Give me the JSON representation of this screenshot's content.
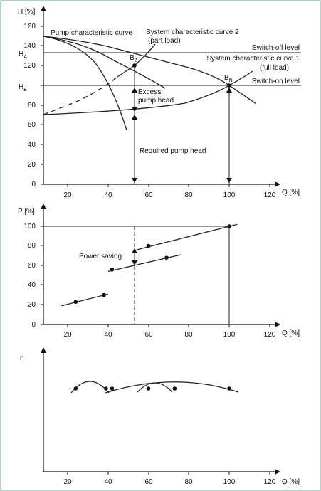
{
  "colors": {
    "frame_border": "#9cc3b3",
    "ink": "#111111",
    "background": "#ffffff"
  },
  "chart_data": [
    {
      "type": "line",
      "ylabel": "H [%]",
      "xlabel": "Q [%]",
      "xlim": [
        8,
        125
      ],
      "ylim": [
        0,
        165
      ],
      "x_ticks": [
        "20",
        "40",
        "60",
        "80",
        "100",
        "120"
      ],
      "y_ticks": [
        "0",
        "20",
        "40",
        "60",
        "80",
        "100",
        "120",
        "140",
        "160"
      ],
      "series": [
        {
          "name": "Pump characteristic curve",
          "x": [
            8,
            30,
            50,
            54,
            65,
            80,
            100,
            110
          ],
          "y": [
            150,
            144,
            130,
            120,
            112,
            105,
            100,
            82
          ],
          "style": "solid"
        },
        {
          "name": "System characteristic curve 1 (full load)",
          "x": [
            8,
            40,
            60,
            80,
            100,
            112
          ],
          "y": [
            70,
            72,
            78,
            86,
            100,
            114
          ],
          "style": "solid"
        },
        {
          "name": "System characteristic curve 2 (part load)",
          "x": [
            8,
            30,
            45,
            54,
            62
          ],
          "y": [
            70,
            84,
            102,
            120,
            142
          ],
          "style": "dashed_then_solid"
        },
        {
          "name": "",
          "x": [
            8,
            20,
            30,
            40,
            46,
            51,
            59,
            68
          ],
          "y": [
            150,
            140,
            127,
            111,
            100,
            85,
            70,
            55
          ],
          "style": "solid"
        },
        {
          "name": "",
          "x": [
            8,
            25,
            40,
            49,
            54,
            63,
            69
          ],
          "y": [
            150,
            138,
            120,
            107,
            97,
            85,
            73
          ],
          "style": "solid"
        }
      ],
      "reference_lines": [
        {
          "label": "H_A",
          "value": 133,
          "text": "Switch-off level"
        },
        {
          "label": "H_E",
          "value": 100,
          "text": "Switch-on level"
        }
      ],
      "points": [
        {
          "label": "B",
          "subscript": "2",
          "x": 54,
          "y": 120
        },
        {
          "label": "B",
          "subscript": "N",
          "x": 100,
          "y": 100
        }
      ],
      "annotations": [
        "Excess pump head",
        "Required pump head"
      ],
      "annotation_lines": [
        "Pump characteristic curve",
        "System characteristic curve 2",
        "(part load)",
        "Switch-off level",
        "System characteristic curve 1",
        "(full load)",
        "Switch-on level",
        "Excess",
        "pump head",
        "Required pump head"
      ]
    },
    {
      "type": "line",
      "ylabel": "P [%]",
      "xlabel": "Q [%]",
      "xlim": [
        8,
        125
      ],
      "ylim": [
        0,
        105
      ],
      "x_ticks": [
        "20",
        "40",
        "60",
        "80",
        "100",
        "120"
      ],
      "y_ticks": [
        "0",
        "20",
        "40",
        "60",
        "80",
        "100"
      ],
      "segments": [
        {
          "x": [
            17,
            40
          ],
          "y": [
            19,
            31
          ]
        },
        {
          "x": [
            40,
            76
          ],
          "y": [
            54,
            71
          ]
        },
        {
          "x": [
            54,
            104
          ],
          "y": [
            76,
            102
          ]
        }
      ],
      "points": [
        {
          "x": 24,
          "y": 23
        },
        {
          "x": 38,
          "y": 30
        },
        {
          "x": 42,
          "y": 56
        },
        {
          "x": 69,
          "y": 68
        },
        {
          "x": 60,
          "y": 80
        },
        {
          "x": 100,
          "y": 100
        }
      ],
      "annotations": [
        "Power saving"
      ]
    },
    {
      "type": "line",
      "ylabel": "η",
      "xlabel": "Q [%]",
      "xlim": [
        8,
        125
      ],
      "x_ticks": [
        "20",
        "40",
        "60",
        "80",
        "100",
        "120"
      ],
      "arcs": [
        {
          "x": [
            22,
            41
          ]
        },
        {
          "x": [
            41,
            105
          ]
        },
        {
          "x": [
            56,
            73
          ]
        }
      ],
      "points": [
        {
          "x": 24
        },
        {
          "x": 39
        },
        {
          "x": 42
        },
        {
          "x": 60
        },
        {
          "x": 73
        },
        {
          "x": 100
        }
      ]
    }
  ]
}
